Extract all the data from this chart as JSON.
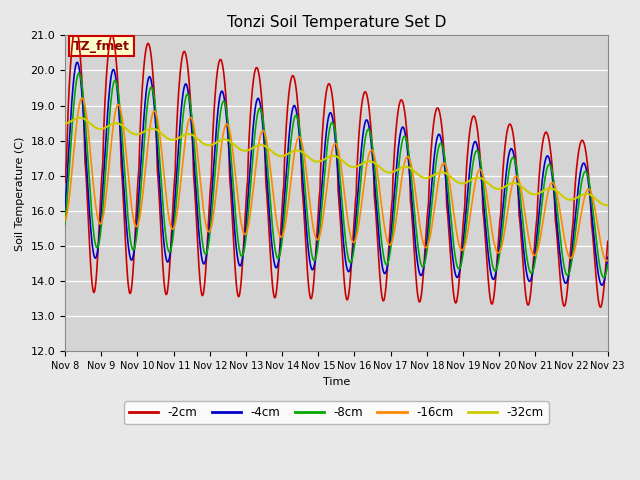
{
  "title": "Tonzi Soil Temperature Set D",
  "ylabel": "Soil Temperature (C)",
  "xlabel": "Time",
  "annotation": "TZ_fmet",
  "ylim": [
    12.0,
    21.0
  ],
  "yticks": [
    12.0,
    13.0,
    14.0,
    15.0,
    16.0,
    17.0,
    18.0,
    19.0,
    20.0,
    21.0
  ],
  "xtick_labels": [
    "Nov 8",
    "Nov 9",
    "Nov 10",
    "Nov 11",
    "Nov 12",
    "Nov 13",
    "Nov 14",
    "Nov 15",
    "Nov 16",
    "Nov 17",
    "Nov 18",
    "Nov 19",
    "Nov 20",
    "Nov 21",
    "Nov 22",
    "Nov 23"
  ],
  "colors": {
    "-2cm": "#cc0000",
    "-4cm": "#0000cc",
    "-8cm": "#00aa00",
    "-16cm": "#ff8800",
    "-32cm": "#cccc00"
  },
  "legend_labels": [
    "-2cm",
    "-4cm",
    "-8cm",
    "-16cm",
    "-32cm"
  ],
  "background_color": "#e8e8e8",
  "plot_bg_color": "#d4d4d4",
  "annotation_bg": "#ffffcc",
  "annotation_border": "#cc0000",
  "figsize": [
    6.4,
    4.8
  ],
  "dpi": 100
}
